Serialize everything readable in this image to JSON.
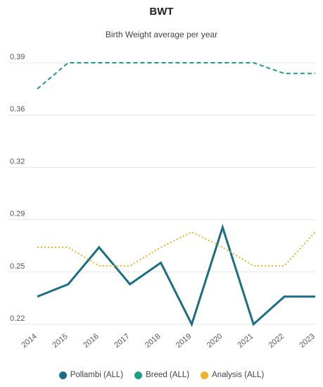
{
  "chart_data": {
    "type": "line",
    "title": "BWT",
    "subtitle": "Birth Weight average per year",
    "x": [
      "2014",
      "2015",
      "2016",
      "2017",
      "2018",
      "2019",
      "2020",
      "2021",
      "2022",
      "2023"
    ],
    "y_ticks": [
      "0.22",
      "0.25",
      "0.29",
      "0.32",
      "0.36",
      "0.39"
    ],
    "ylim": [
      0.22,
      0.39
    ],
    "grid": "horizontal",
    "legend_position": "bottom",
    "series": [
      {
        "name": "Pollambi (ALL)",
        "color": "#1b6e86",
        "style": "solid",
        "values": [
          0.238,
          0.246,
          0.27,
          0.246,
          0.26,
          0.22,
          0.283,
          0.22,
          0.238,
          0.238
        ]
      },
      {
        "name": "Breed (ALL)",
        "color": "#1f9c86",
        "style": "dashed",
        "values": [
          0.373,
          0.39,
          0.39,
          0.39,
          0.39,
          0.39,
          0.39,
          0.39,
          0.383,
          0.383
        ]
      },
      {
        "name": "Analysis (ALL)",
        "color": "#f0b323",
        "style": "dotted",
        "values": [
          0.27,
          0.27,
          0.258,
          0.258,
          0.27,
          0.28,
          0.27,
          0.258,
          0.258,
          0.28
        ]
      }
    ]
  }
}
